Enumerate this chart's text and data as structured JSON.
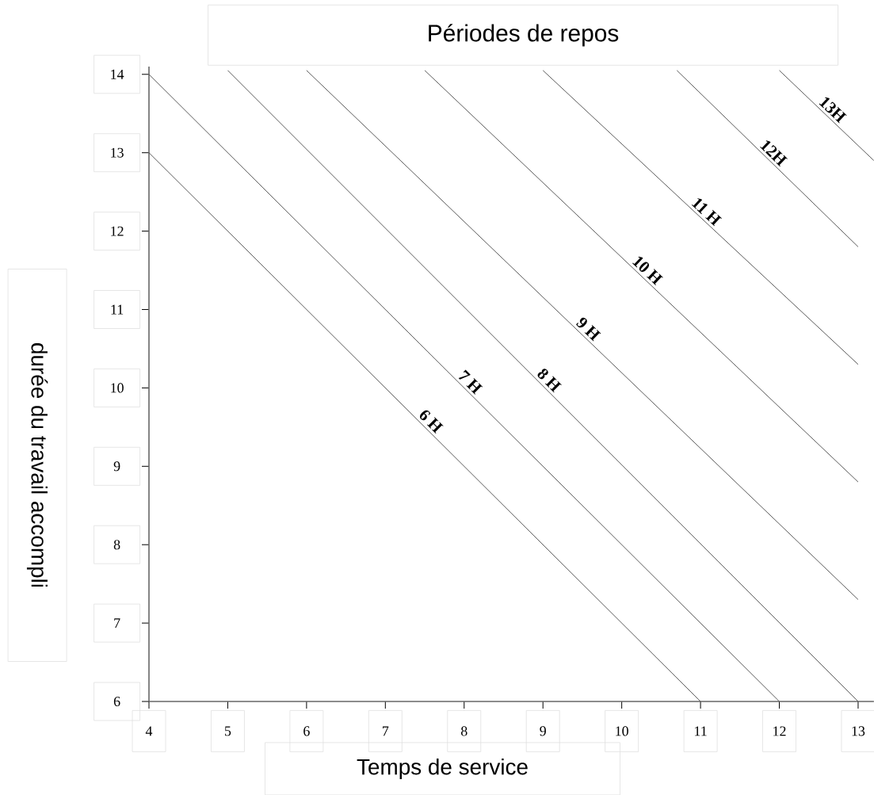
{
  "chart_data": {
    "type": "line",
    "title": "Périodes de repos",
    "xlabel": "Temps de service",
    "ylabel": "durée du travail accompli",
    "xlim": [
      4,
      13.2
    ],
    "ylim": [
      6,
      14.1
    ],
    "xticks": [
      4,
      5,
      6,
      7,
      8,
      9,
      10,
      11,
      12,
      13
    ],
    "yticks": [
      6,
      7,
      8,
      9,
      10,
      11,
      12,
      13,
      14
    ],
    "series": [
      {
        "name": "6 H",
        "color": "#444444",
        "x": [
          4,
          11
        ],
        "values": [
          13,
          6
        ]
      },
      {
        "name": "7 H",
        "color": "#444444",
        "x": [
          4,
          12
        ],
        "values": [
          14,
          6
        ]
      },
      {
        "name": "8 H",
        "color": "#444444",
        "x": [
          5,
          13
        ],
        "values": [
          14.05,
          6
        ]
      },
      {
        "name": "9 H",
        "color": "#444444",
        "x": [
          6,
          13
        ],
        "values": [
          14.05,
          7.3
        ]
      },
      {
        "name": "10 H",
        "color": "#444444",
        "x": [
          7.5,
          13
        ],
        "values": [
          14.05,
          8.8
        ]
      },
      {
        "name": "11 H",
        "color": "#444444",
        "x": [
          9,
          13
        ],
        "values": [
          14.05,
          10.3
        ]
      },
      {
        "name": "12H",
        "color": "#444444",
        "x": [
          10.7,
          13
        ],
        "values": [
          14.05,
          11.8
        ]
      },
      {
        "name": "13H",
        "color": "#444444",
        "x": [
          12,
          13.2
        ],
        "values": [
          14.05,
          12.9
        ]
      }
    ]
  }
}
